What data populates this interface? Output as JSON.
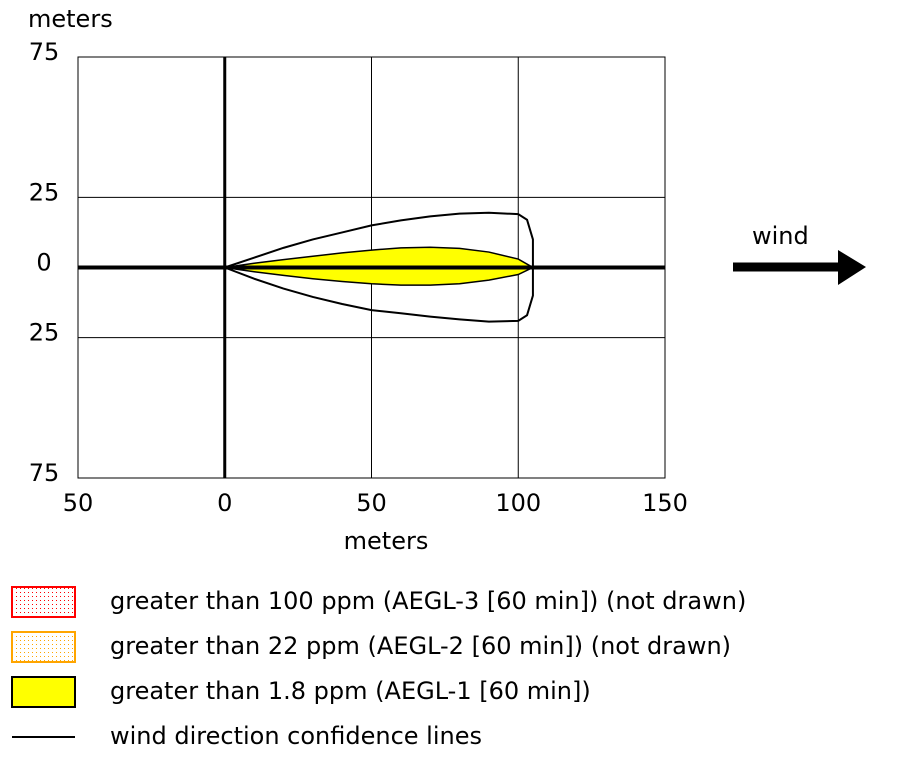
{
  "chart_data": {
    "type": "plume",
    "ylabel": "meters",
    "xlabel": "meters",
    "annotation": "wind",
    "xlim": [
      -50,
      150
    ],
    "ylim": [
      -75,
      75
    ],
    "xticks": [
      {
        "value": -50,
        "label": "50"
      },
      0,
      50,
      100,
      150
    ],
    "yticks": [
      {
        "value": -75,
        "label": "75"
      },
      {
        "value": -25,
        "label": "25"
      },
      0,
      25,
      75
    ],
    "grid": true,
    "series": [
      {
        "name": "greater than 100 ppm (AEGL-3 [60 min]) (not drawn)",
        "color": "#ff0000"
      },
      {
        "name": "greater than 22 ppm (AEGL-2 [60 min]) (not drawn)",
        "color": "#ffa500"
      },
      {
        "name": "greater than 1.8 ppm (AEGL-1 [60 min])",
        "color": "#ffff00",
        "x": [
          0,
          10,
          20,
          30,
          40,
          50,
          60,
          70,
          80,
          90,
          100,
          105,
          100,
          90,
          80,
          70,
          60,
          50,
          40,
          30,
          20,
          10
        ],
        "y": [
          0,
          1.5,
          2.8,
          4,
          5.2,
          6.2,
          7,
          7.2,
          6.8,
          5.5,
          3,
          0,
          -2.5,
          -4.5,
          -5.8,
          -6.3,
          -6.3,
          -5.8,
          -5,
          -4,
          -2.8,
          -1.5
        ]
      },
      {
        "name": "wind direction confidence lines",
        "color": "#000000",
        "x": [
          0,
          10,
          20,
          30,
          40,
          50,
          60,
          70,
          80,
          90,
          100,
          103,
          105,
          105,
          105,
          103,
          100,
          90,
          80,
          70,
          60,
          50,
          40,
          30,
          20,
          10
        ],
        "y": [
          0,
          3.5,
          7,
          10,
          12.5,
          15,
          16.8,
          18.2,
          19.2,
          19.5,
          19,
          17,
          10,
          0,
          -10,
          -17,
          -19,
          -19.3,
          -18.5,
          -17.5,
          -16.3,
          -15.2,
          -13,
          -10.5,
          -7.5,
          -4
        ]
      }
    ]
  }
}
